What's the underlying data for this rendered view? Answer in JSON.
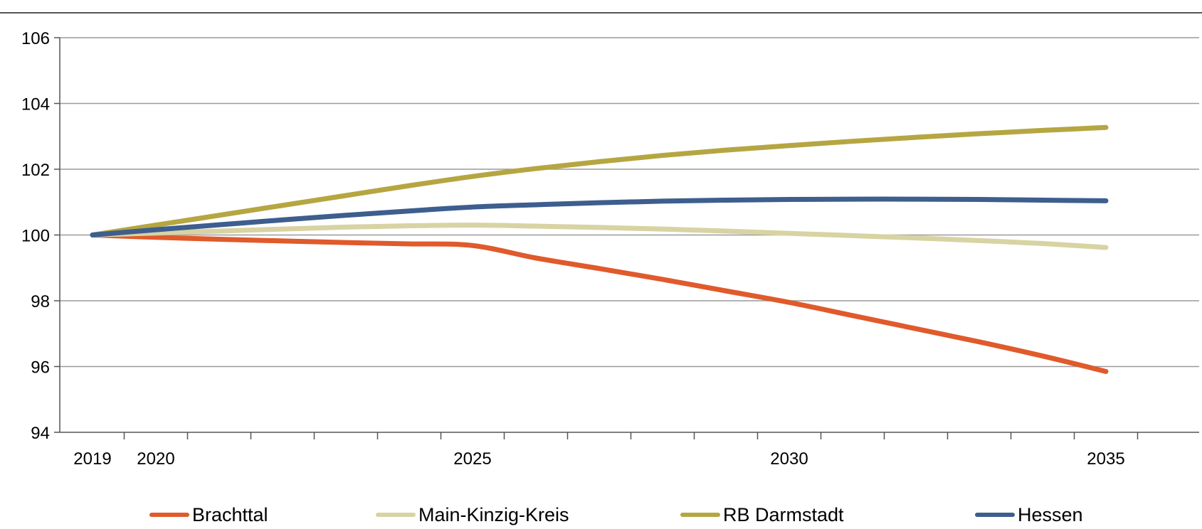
{
  "chart_data": {
    "type": "line",
    "title": "",
    "xlabel": "",
    "ylabel": "",
    "xlim": [
      2018.5,
      2037
    ],
    "ylim": [
      94,
      106
    ],
    "y_ticks": [
      94,
      96,
      98,
      100,
      102,
      104,
      106
    ],
    "x_tick_labels": [
      {
        "x": 2019,
        "label": "2019"
      },
      {
        "x": 2020,
        "label": "2020"
      },
      {
        "x": 2025,
        "label": "2025"
      },
      {
        "x": 2030,
        "label": "2030"
      },
      {
        "x": 2035,
        "label": "2035"
      }
    ],
    "grid": "horizontal",
    "legend_position": "bottom",
    "x": [
      2019,
      2020,
      2021,
      2022,
      2023,
      2024,
      2025,
      2026,
      2027,
      2028,
      2029,
      2030,
      2031,
      2032,
      2033,
      2034,
      2035
    ],
    "series": [
      {
        "name": "Brachttal",
        "color": "#E05A2B",
        "values": [
          100,
          99.93,
          99.87,
          99.82,
          99.77,
          99.73,
          99.68,
          99.3,
          98.98,
          98.65,
          98.3,
          97.95,
          97.55,
          97.15,
          96.75,
          96.32,
          95.85
        ]
      },
      {
        "name": "Main-Kinzig-Kreis",
        "color": "#D8D3A3",
        "values": [
          100,
          100.06,
          100.12,
          100.18,
          100.24,
          100.28,
          100.3,
          100.27,
          100.23,
          100.18,
          100.12,
          100.05,
          99.98,
          99.91,
          99.83,
          99.74,
          99.62
        ]
      },
      {
        "name": "RB Darmstadt",
        "color": "#B5A642",
        "values": [
          100,
          100.3,
          100.6,
          100.9,
          101.2,
          101.5,
          101.78,
          102.02,
          102.23,
          102.42,
          102.58,
          102.72,
          102.85,
          102.97,
          103.08,
          103.18,
          103.27
        ]
      },
      {
        "name": "Hessen",
        "color": "#3D5E8E",
        "values": [
          100,
          100.16,
          100.31,
          100.46,
          100.6,
          100.73,
          100.85,
          100.92,
          100.98,
          101.03,
          101.06,
          101.08,
          101.09,
          101.09,
          101.08,
          101.06,
          101.04
        ]
      }
    ]
  }
}
